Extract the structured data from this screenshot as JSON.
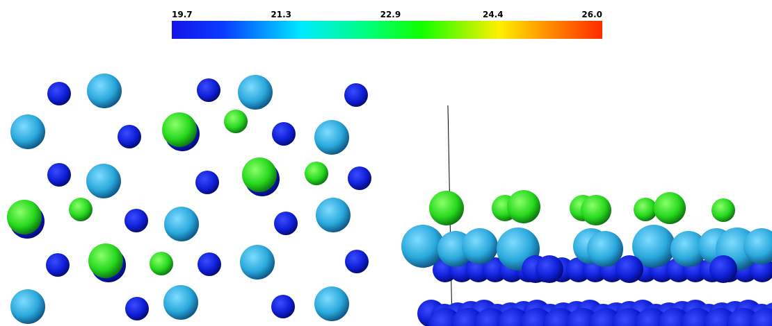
{
  "colorbar": {
    "range": [
      19.7,
      26.0
    ],
    "ticks": [
      19.7,
      21.3,
      22.9,
      24.4,
      {
        "value": 26,
        "label": "26.0"
      }
    ]
  }
}
